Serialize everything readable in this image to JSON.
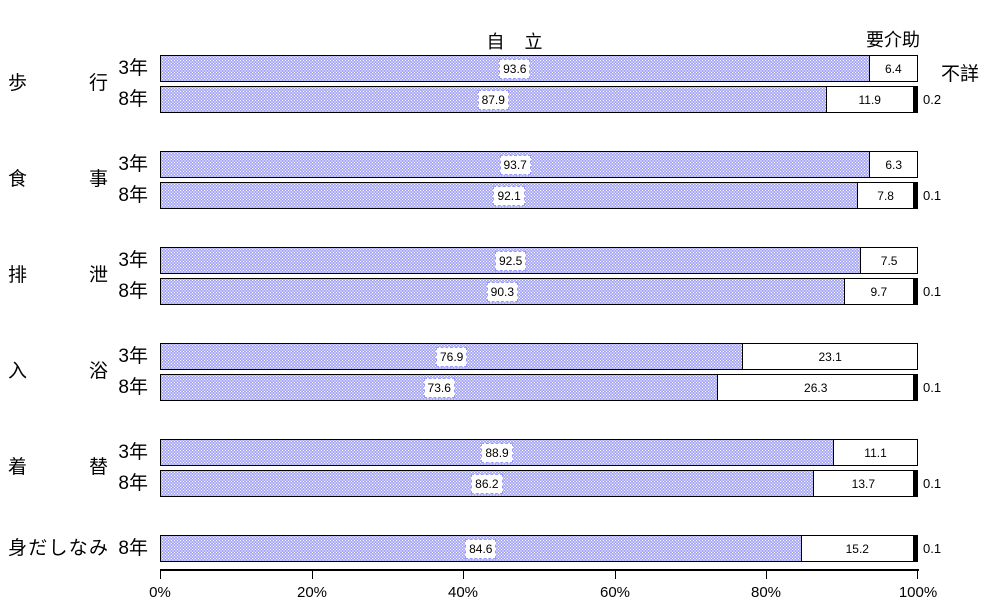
{
  "chart_data": {
    "type": "bar",
    "orientation": "horizontal-stacked",
    "headers": {
      "independent": "自　立",
      "assist": "要介助",
      "unknown": "不詳"
    },
    "x_axis": {
      "ticks": [
        "0%",
        "20%",
        "40%",
        "60%",
        "80%",
        "100%"
      ],
      "min": 0,
      "max": 100,
      "grid": false
    },
    "legend_position": "above-bars",
    "colors": {
      "independent_fill": "#8585ef",
      "independent_dot": "#ffffff",
      "assist_fill": "#ffffff",
      "unknown_fill": "#000000",
      "bar_border": "#000000",
      "label_box_border": "#9999ff"
    },
    "groups": [
      {
        "category": "歩行",
        "rows": [
          {
            "year": "3年",
            "independent": 93.6,
            "assist": 6.4,
            "unknown": null
          },
          {
            "year": "8年",
            "independent": 87.9,
            "assist": 11.9,
            "unknown": 0.2
          }
        ]
      },
      {
        "category": "食事",
        "rows": [
          {
            "year": "3年",
            "independent": 93.7,
            "assist": 6.3,
            "unknown": null
          },
          {
            "year": "8年",
            "independent": 92.1,
            "assist": 7.8,
            "unknown": 0.1
          }
        ]
      },
      {
        "category": "排泄",
        "rows": [
          {
            "year": "3年",
            "independent": 92.5,
            "assist": 7.5,
            "unknown": null
          },
          {
            "year": "8年",
            "independent": 90.3,
            "assist": 9.7,
            "unknown": 0.1
          }
        ]
      },
      {
        "category": "入浴",
        "rows": [
          {
            "year": "3年",
            "independent": 76.9,
            "assist": 23.1,
            "unknown": null
          },
          {
            "year": "8年",
            "independent": 73.6,
            "assist": 26.3,
            "unknown": 0.1
          }
        ]
      },
      {
        "category": "着替",
        "rows": [
          {
            "year": "3年",
            "independent": 88.9,
            "assist": 11.1,
            "unknown": null
          },
          {
            "year": "8年",
            "independent": 86.2,
            "assist": 13.7,
            "unknown": 0.1
          }
        ]
      },
      {
        "category": "身だしなみ",
        "rows": [
          {
            "year": "8年",
            "independent": 84.6,
            "assist": 15.2,
            "unknown": 0.1
          }
        ]
      }
    ]
  }
}
